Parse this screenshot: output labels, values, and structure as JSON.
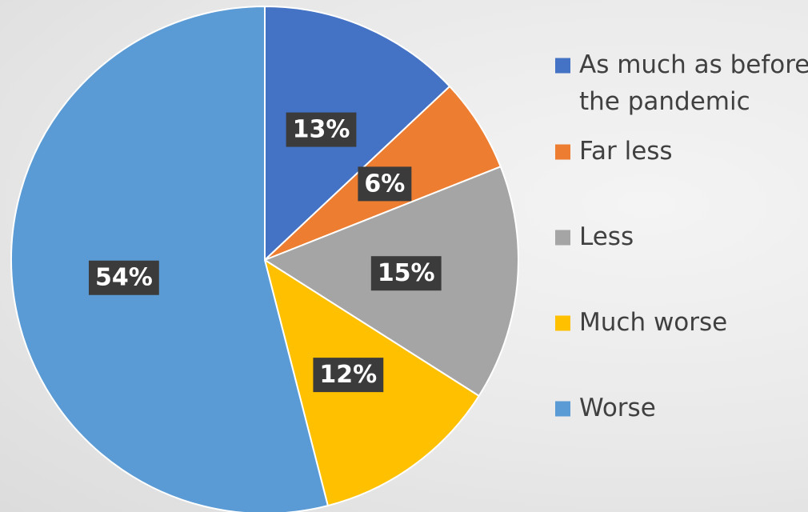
{
  "chart_data": {
    "type": "pie",
    "title": "",
    "categories": [
      "As much as before the pandemic",
      "Far less",
      "Less",
      "Much worse",
      "Worse"
    ],
    "values": [
      13,
      6,
      15,
      12,
      54
    ],
    "data_labels": [
      "13%",
      "6%",
      "15%",
      "12%",
      "54%"
    ],
    "colors": [
      "#4472c4",
      "#ed7d31",
      "#a5a5a5",
      "#ffc000",
      "#5b9bd5"
    ],
    "legend": {
      "position": "right",
      "entries": [
        [
          "As much as before",
          "the pandemic"
        ],
        [
          "Far less"
        ],
        [
          "Less"
        ],
        [
          "Much worse"
        ],
        [
          "Worse"
        ]
      ]
    }
  }
}
